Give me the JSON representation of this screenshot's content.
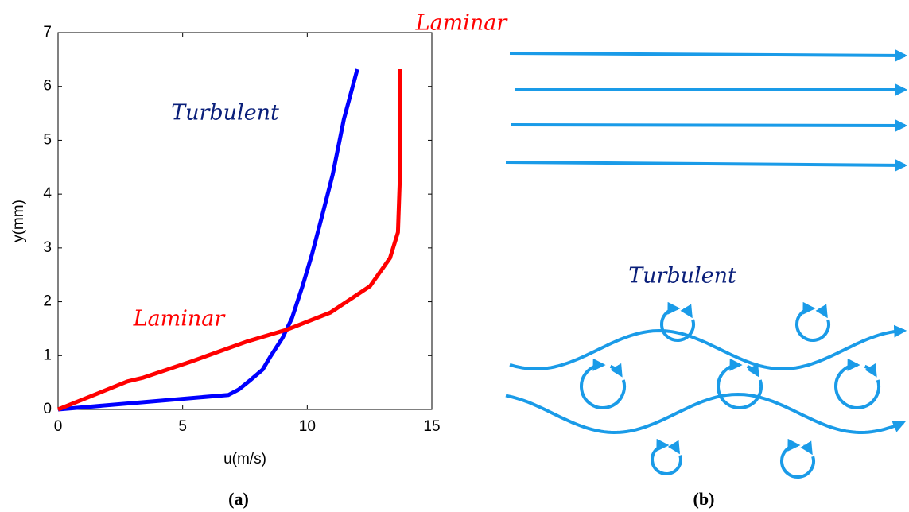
{
  "chart_data": {
    "type": "line",
    "xlabel": "u(m/s)",
    "ylabel": "y(mm)",
    "xlim": [
      0,
      15
    ],
    "xticks": [
      0,
      5,
      10,
      15
    ],
    "ylim": [
      0,
      7
    ],
    "yticks": [
      0,
      1,
      2,
      3,
      4,
      5,
      6,
      7
    ],
    "grid": false,
    "series": [
      {
        "name": "Turbulent",
        "color": "#0000ff",
        "label_color": "#0a1f7a",
        "x": [
          0,
          6.84,
          7.25,
          7.73,
          8.21,
          8.53,
          9.01,
          9.39,
          9.81,
          10.19,
          10.61,
          11.02,
          11.47,
          12.01
        ],
        "values": [
          0,
          0.27,
          0.37,
          0.55,
          0.74,
          0.99,
          1.33,
          1.7,
          2.29,
          2.88,
          3.62,
          4.36,
          5.39,
          6.32
        ]
      },
      {
        "name": "Laminar",
        "color": "#ff0000",
        "label_color": "#ff0000",
        "x": [
          0,
          2.78,
          3.42,
          5.34,
          7.57,
          9.17,
          10.93,
          12.52,
          13.32,
          13.64,
          13.71,
          13.71
        ],
        "values": [
          0,
          0.52,
          0.59,
          0.89,
          1.26,
          1.48,
          1.8,
          2.29,
          2.81,
          3.29,
          4.21,
          6.32
        ]
      }
    ]
  },
  "panel_labels": [
    "(a)",
    "(b)"
  ],
  "diagram": {
    "laminar_label": "Laminar",
    "turbulent_label": "Turbulent"
  }
}
